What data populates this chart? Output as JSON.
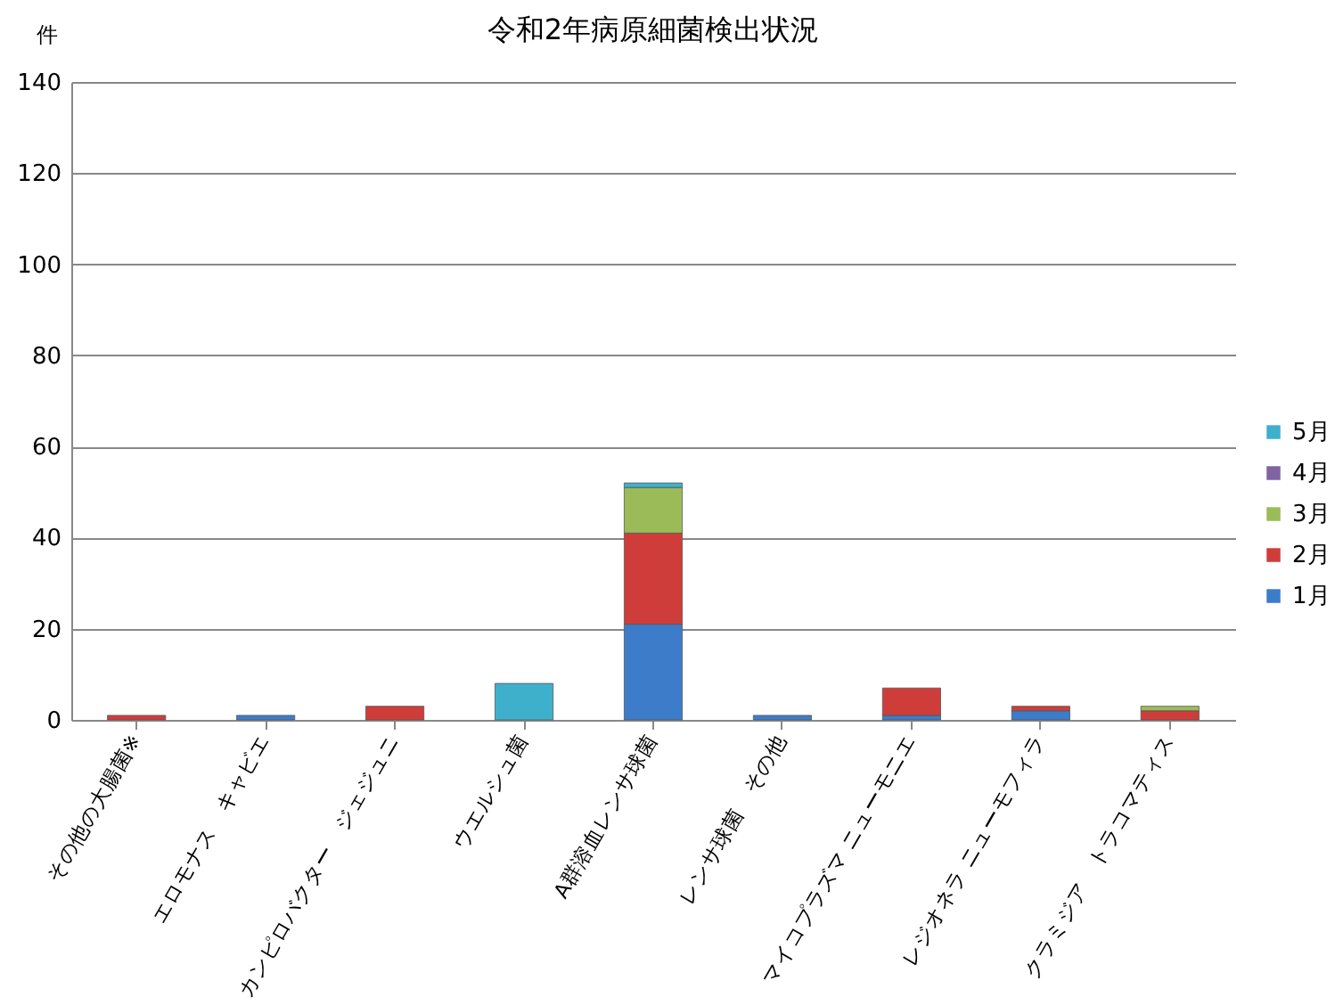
{
  "chart_data": {
    "type": "bar",
    "title": "令和2年病原細菌検出状況",
    "ylabel": "件",
    "categories": [
      "その他の大腸菌※",
      "エロモナス　キャビエ",
      "カンピロバクター　ジェジュニ",
      "ウエルシュ菌",
      "A群溶血レンサ球菌",
      "レンサ球菌　その他",
      "マイコプラズマ ニューモニエ",
      "レジオネラ ニューモフィラ",
      "クラミジア　トラコマティス"
    ],
    "series": [
      {
        "name": "1月",
        "color": "#3d7cc9",
        "values": [
          null,
          1,
          null,
          null,
          21,
          1,
          1,
          2,
          null
        ]
      },
      {
        "name": "2月",
        "color": "#cf3d3a",
        "values": [
          1,
          null,
          3,
          null,
          20,
          null,
          6,
          1,
          2
        ]
      },
      {
        "name": "3月",
        "color": "#9bbb59",
        "values": [
          null,
          null,
          null,
          null,
          10,
          null,
          null,
          null,
          1
        ]
      },
      {
        "name": "4月",
        "color": "#8064a2",
        "values": [
          null,
          null,
          null,
          null,
          null,
          null,
          null,
          null,
          null
        ]
      },
      {
        "name": "5月",
        "color": "#3fb0cc",
        "values": [
          null,
          null,
          null,
          8,
          1,
          null,
          null,
          null,
          null
        ]
      }
    ],
    "stacked": true,
    "ylim": [
      0,
      140
    ],
    "yticks": [
      0,
      20,
      40,
      60,
      80,
      100,
      120,
      140
    ],
    "grid": "y",
    "legend": "right"
  }
}
